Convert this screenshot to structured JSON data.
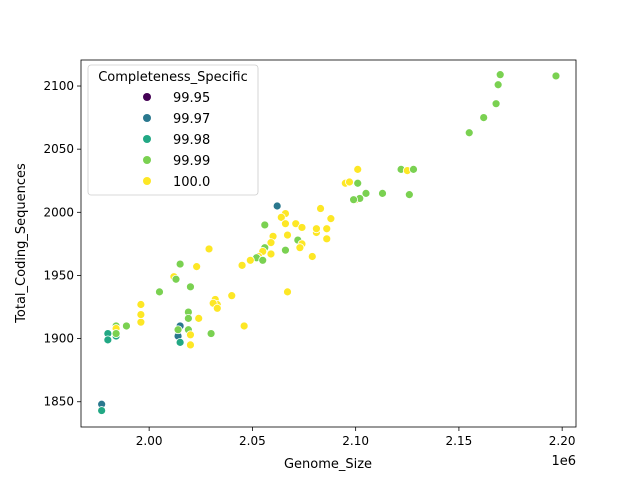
{
  "chart_data": {
    "type": "scatter",
    "xlabel": "Genome_Size",
    "ylabel": "Total_Coding_Sequences",
    "x_offset_label": "1e6",
    "xlim": [
      1.967,
      2.2067
    ],
    "ylim": [
      1830,
      2120.6
    ],
    "x_ticks": [
      2.0,
      2.05,
      2.1,
      2.15,
      2.2
    ],
    "x_tick_labels": [
      "2.00",
      "2.05",
      "2.10",
      "2.15",
      "2.20"
    ],
    "y_ticks": [
      1850,
      1900,
      1950,
      2000,
      2050,
      2100
    ],
    "y_tick_labels": [
      "1850",
      "1900",
      "1950",
      "2000",
      "2050",
      "2100"
    ],
    "grid": false,
    "legend": {
      "title": "Completeness_Specific",
      "placement": "top-left",
      "entries": [
        {
          "label": "99.95",
          "color": "#440154"
        },
        {
          "label": "99.97",
          "color": "#2a788e"
        },
        {
          "label": "99.98",
          "color": "#22a884"
        },
        {
          "label": "99.99",
          "color": "#7ad151"
        },
        {
          "label": "100.0",
          "color": "#fde725"
        }
      ]
    },
    "points": [
      [
        1.977,
        1848,
        "99.97"
      ],
      [
        1.977,
        1843,
        "99.98"
      ],
      [
        1.98,
        1904,
        "99.98"
      ],
      [
        1.98,
        1899,
        "99.98"
      ],
      [
        1.984,
        1902,
        "99.98"
      ],
      [
        1.984,
        1910,
        "99.99"
      ],
      [
        1.984,
        1908,
        "100.0"
      ],
      [
        1.984,
        1904,
        "99.99"
      ],
      [
        1.989,
        1910,
        "99.99"
      ],
      [
        1.996,
        1913,
        "100.0"
      ],
      [
        1.996,
        1919,
        "100.0"
      ],
      [
        1.996,
        1927,
        "100.0"
      ],
      [
        2.005,
        1937,
        "99.99"
      ],
      [
        2.012,
        1949,
        "100.0"
      ],
      [
        2.013,
        1947,
        "99.99"
      ],
      [
        2.015,
        1959,
        "99.99"
      ],
      [
        2.023,
        1957,
        "100.0"
      ],
      [
        2.02,
        1941,
        "99.99"
      ],
      [
        2.019,
        1921,
        "99.99"
      ],
      [
        2.019,
        1916,
        "99.99"
      ],
      [
        2.024,
        1916,
        "100.0"
      ],
      [
        2.015,
        1910,
        "99.97"
      ],
      [
        2.014,
        1902,
        "99.97"
      ],
      [
        2.015,
        1897,
        "99.98"
      ],
      [
        2.014,
        1907,
        "99.99"
      ],
      [
        2.019,
        1907,
        "99.99"
      ],
      [
        2.02,
        1903,
        "100.0"
      ],
      [
        2.02,
        1895,
        "100.0"
      ],
      [
        2.03,
        1904,
        "99.99"
      ],
      [
        2.032,
        1931,
        "100.0"
      ],
      [
        2.033,
        1927,
        "100.0"
      ],
      [
        2.031,
        1928,
        "100.0"
      ],
      [
        2.033,
        1924,
        "100.0"
      ],
      [
        2.04,
        1934,
        "100.0"
      ],
      [
        2.046,
        1910,
        "100.0"
      ],
      [
        2.029,
        1971,
        "100.0"
      ],
      [
        2.101,
        2034,
        "100.0"
      ],
      [
        2.095,
        2023,
        "100.0"
      ],
      [
        2.097,
        2024,
        "100.0"
      ],
      [
        2.101,
        2023,
        "99.99"
      ],
      [
        2.105,
        2015,
        "99.99"
      ],
      [
        2.1,
        2010,
        "100.0"
      ],
      [
        2.102,
        2011,
        "99.99"
      ],
      [
        2.099,
        2010,
        "99.99"
      ],
      [
        2.062,
        2005,
        "99.97"
      ],
      [
        2.066,
        1999,
        "100.0"
      ],
      [
        2.064,
        1996,
        "100.0"
      ],
      [
        2.066,
        1991,
        "100.0"
      ],
      [
        2.071,
        1991,
        "100.0"
      ],
      [
        2.074,
        1988,
        "100.0"
      ],
      [
        2.083,
        2003,
        "100.0"
      ],
      [
        2.088,
        1995,
        "100.0"
      ],
      [
        2.081,
        1984,
        "100.0"
      ],
      [
        2.081,
        1987,
        "100.0"
      ],
      [
        2.086,
        1987,
        "100.0"
      ],
      [
        2.086,
        1979,
        "100.0"
      ],
      [
        2.056,
        1990,
        "99.99"
      ],
      [
        2.067,
        1982,
        "100.0"
      ],
      [
        2.06,
        1981,
        "100.0"
      ],
      [
        2.059,
        1976,
        "100.0"
      ],
      [
        2.072,
        1978,
        "99.99"
      ],
      [
        2.074,
        1975,
        "100.0"
      ],
      [
        2.073,
        1972,
        "100.0"
      ],
      [
        2.056,
        1972,
        "99.99"
      ],
      [
        2.055,
        1969,
        "100.0"
      ],
      [
        2.066,
        1970,
        "99.99"
      ],
      [
        2.059,
        1967,
        "100.0"
      ],
      [
        2.053,
        1965,
        "100.0"
      ],
      [
        2.052,
        1964,
        "99.99"
      ],
      [
        2.055,
        1962,
        "99.99"
      ],
      [
        2.049,
        1962,
        "100.0"
      ],
      [
        2.045,
        1958,
        "100.0"
      ],
      [
        2.079,
        1965,
        "100.0"
      ],
      [
        2.067,
        1937,
        "100.0"
      ],
      [
        2.17,
        2109,
        "99.99"
      ],
      [
        2.169,
        2101,
        "99.99"
      ],
      [
        2.168,
        2086,
        "99.99"
      ],
      [
        2.162,
        2075,
        "99.99"
      ],
      [
        2.155,
        2063,
        "99.99"
      ],
      [
        2.197,
        2108,
        "99.99"
      ],
      [
        2.122,
        2034,
        "99.99"
      ],
      [
        2.125,
        2033,
        "100.0"
      ],
      [
        2.128,
        2034,
        "99.99"
      ],
      [
        2.113,
        2015,
        "99.99"
      ],
      [
        2.126,
        2014,
        "99.99"
      ]
    ]
  }
}
